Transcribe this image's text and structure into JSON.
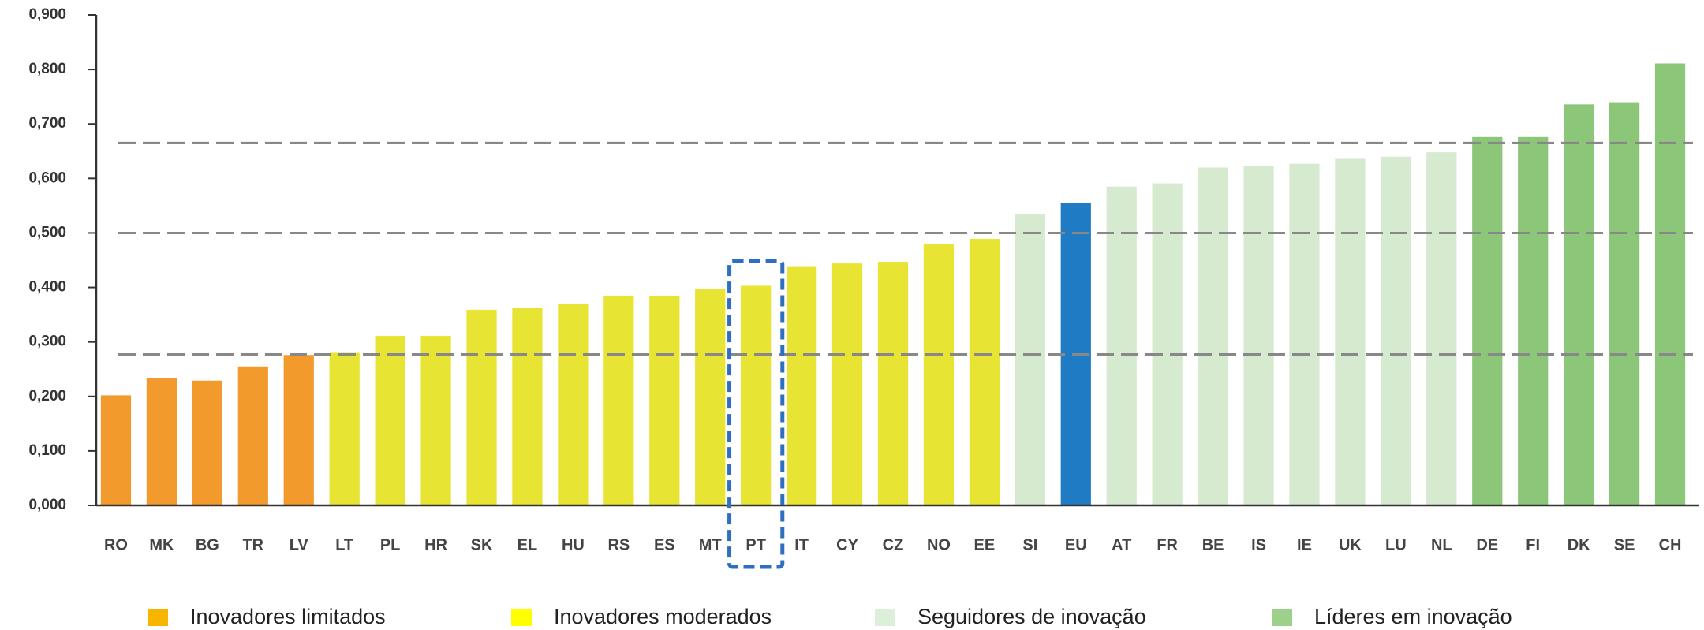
{
  "chart_data": {
    "type": "bar",
    "categories": [
      "RO",
      "MK",
      "BG",
      "TR",
      "LV",
      "LT",
      "PL",
      "HR",
      "SK",
      "EL",
      "HU",
      "RS",
      "ES",
      "MT",
      "PT",
      "IT",
      "CY",
      "CZ",
      "NO",
      "EE",
      "SI",
      "EU",
      "AT",
      "FR",
      "BE",
      "IS",
      "IE",
      "UK",
      "LU",
      "NL",
      "DE",
      "FI",
      "DK",
      "SE",
      "CH"
    ],
    "values": [
      0.202,
      0.233,
      0.229,
      0.255,
      0.276,
      0.28,
      0.311,
      0.311,
      0.359,
      0.363,
      0.369,
      0.385,
      0.385,
      0.397,
      0.403,
      0.439,
      0.444,
      0.447,
      0.48,
      0.489,
      0.534,
      0.555,
      0.585,
      0.591,
      0.62,
      0.623,
      0.627,
      0.636,
      0.64,
      0.648,
      0.676,
      0.676,
      0.736,
      0.74,
      0.811
    ],
    "colors": [
      "#f39a2c",
      "#f39a2c",
      "#f39a2c",
      "#f39a2c",
      "#f39a2c",
      "#e8e433",
      "#e8e433",
      "#e8e433",
      "#e8e433",
      "#e8e433",
      "#e8e433",
      "#e8e433",
      "#e8e433",
      "#e8e433",
      "#e8e433",
      "#e8e433",
      "#e8e433",
      "#e8e433",
      "#e8e433",
      "#e8e433",
      "#d5eacf",
      "#1f7bc4",
      "#d5eacf",
      "#d5eacf",
      "#d5eacf",
      "#d5eacf",
      "#d5eacf",
      "#d5eacf",
      "#d5eacf",
      "#d5eacf",
      "#8cc679",
      "#8cc679",
      "#8cc679",
      "#8cc679",
      "#8cc679"
    ],
    "ylim": [
      0,
      0.9
    ],
    "yticks": [
      {
        "value": 0,
        "label": "0,000"
      },
      {
        "value": 0.1,
        "label": "0,100"
      },
      {
        "value": 0.2,
        "label": "0,200"
      },
      {
        "value": 0.3,
        "label": "0,300"
      },
      {
        "value": 0.4,
        "label": "0,400"
      },
      {
        "value": 0.5,
        "label": "0,500"
      },
      {
        "value": 0.6,
        "label": "0,600"
      },
      {
        "value": 0.7,
        "label": "0,700"
      },
      {
        "value": 0.8,
        "label": "0,800"
      },
      {
        "value": 0.9,
        "label": "0,900"
      }
    ],
    "reference_lines": [
      0.665,
      0.5,
      0.277
    ],
    "highlight": "PT",
    "legend": [
      {
        "name": "Inovadores limitados",
        "color": "#f7b500"
      },
      {
        "name": "Inovadores moderados",
        "color": "#ffff00"
      },
      {
        "name": "Seguidores de inovação",
        "color": "#dcefd8"
      },
      {
        "name": "Líderes em inovação",
        "color": "#9dd08a"
      }
    ]
  }
}
